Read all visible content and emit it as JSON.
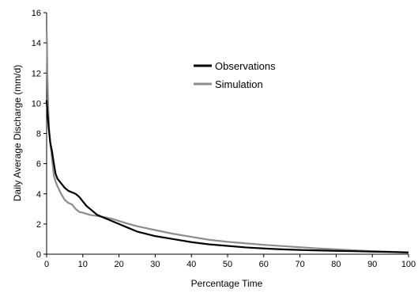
{
  "chart_data": {
    "type": "line",
    "title": "",
    "xlabel": "Percentage Time",
    "ylabel": "Daily Average Discharge (mm/d)",
    "xlim": [
      0,
      100
    ],
    "ylim": [
      0,
      16
    ],
    "xticks": [
      0,
      10,
      20,
      30,
      40,
      50,
      60,
      70,
      80,
      90,
      100
    ],
    "yticks": [
      0,
      2,
      4,
      6,
      8,
      10,
      12,
      14,
      16
    ],
    "grid": false,
    "legend_position": "top-center",
    "series": [
      {
        "name": "Observations",
        "color": "#000000",
        "x": [
          0,
          0.1,
          0.3,
          0.6,
          1,
          1.5,
          2,
          2.5,
          3,
          4,
          5,
          6,
          7,
          8,
          9,
          10,
          11,
          12,
          13,
          14,
          15,
          17,
          20,
          22,
          25,
          30,
          35,
          40,
          45,
          50,
          55,
          60,
          65,
          70,
          75,
          80,
          85,
          90,
          95,
          100
        ],
        "y": [
          10.2,
          9.8,
          9.2,
          8.3,
          7.4,
          6.8,
          6.0,
          5.3,
          5.0,
          4.7,
          4.4,
          4.2,
          4.1,
          4.0,
          3.8,
          3.5,
          3.2,
          3.0,
          2.8,
          2.6,
          2.5,
          2.3,
          2.0,
          1.8,
          1.5,
          1.2,
          1.0,
          0.8,
          0.65,
          0.55,
          0.45,
          0.38,
          0.32,
          0.28,
          0.25,
          0.22,
          0.2,
          0.17,
          0.15,
          0.12
        ]
      },
      {
        "name": "Simulation",
        "color": "#8c8c8c",
        "x": [
          0,
          0.1,
          0.2,
          0.4,
          0.7,
          1,
          1.5,
          2,
          2.5,
          3,
          4,
          5,
          6,
          7,
          8,
          9,
          10,
          12,
          15,
          18,
          20,
          22,
          25,
          30,
          35,
          40,
          45,
          50,
          55,
          60,
          65,
          70,
          75,
          80,
          85,
          90,
          95,
          100
        ],
        "y": [
          14.8,
          14.0,
          12.0,
          10.0,
          8.2,
          7.4,
          6.3,
          5.2,
          4.8,
          4.5,
          4.0,
          3.6,
          3.4,
          3.3,
          3.0,
          2.8,
          2.75,
          2.6,
          2.5,
          2.35,
          2.2,
          2.05,
          1.85,
          1.6,
          1.35,
          1.15,
          0.95,
          0.82,
          0.72,
          0.62,
          0.54,
          0.46,
          0.38,
          0.32,
          0.26,
          0.2,
          0.15,
          0.1
        ]
      }
    ]
  }
}
